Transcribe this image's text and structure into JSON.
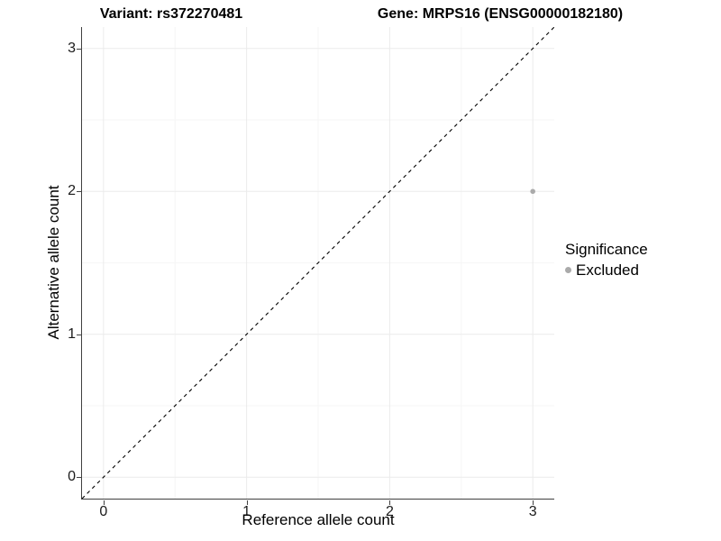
{
  "chart_data": {
    "type": "scatter",
    "title_left": "Variant: rs372270481",
    "title_right": "Gene: MRPS16 (ENSG00000182180)",
    "xlabel": "Reference allele count",
    "ylabel": "Alternative allele count",
    "xlim": [
      -0.15,
      3.15
    ],
    "ylim": [
      -0.15,
      3.15
    ],
    "xticks": [
      0,
      1,
      2,
      3
    ],
    "yticks": [
      0,
      1,
      2,
      3
    ],
    "minor_xticks": [
      0.5,
      1.5,
      2.5
    ],
    "minor_yticks": [
      0.5,
      1.5,
      2.5
    ],
    "grid": true,
    "points": [
      {
        "x": 3,
        "y": 2,
        "series": "Excluded"
      }
    ],
    "identity_line": {
      "from": [
        -0.15,
        -0.15
      ],
      "to": [
        3.15,
        3.15
      ],
      "style": "dashed",
      "color": "#000000"
    },
    "legend": {
      "title": "Significance",
      "position": "right",
      "entries": [
        {
          "label": "Excluded",
          "color": "#aaaaaa"
        }
      ]
    },
    "colors": {
      "point": "#aaaaaa",
      "grid_major": "#ebebeb",
      "grid_minor": "#f6f6f6",
      "axis_line": "#404040",
      "tick_text": "#1a1a1a",
      "title_text": "#000000"
    }
  }
}
